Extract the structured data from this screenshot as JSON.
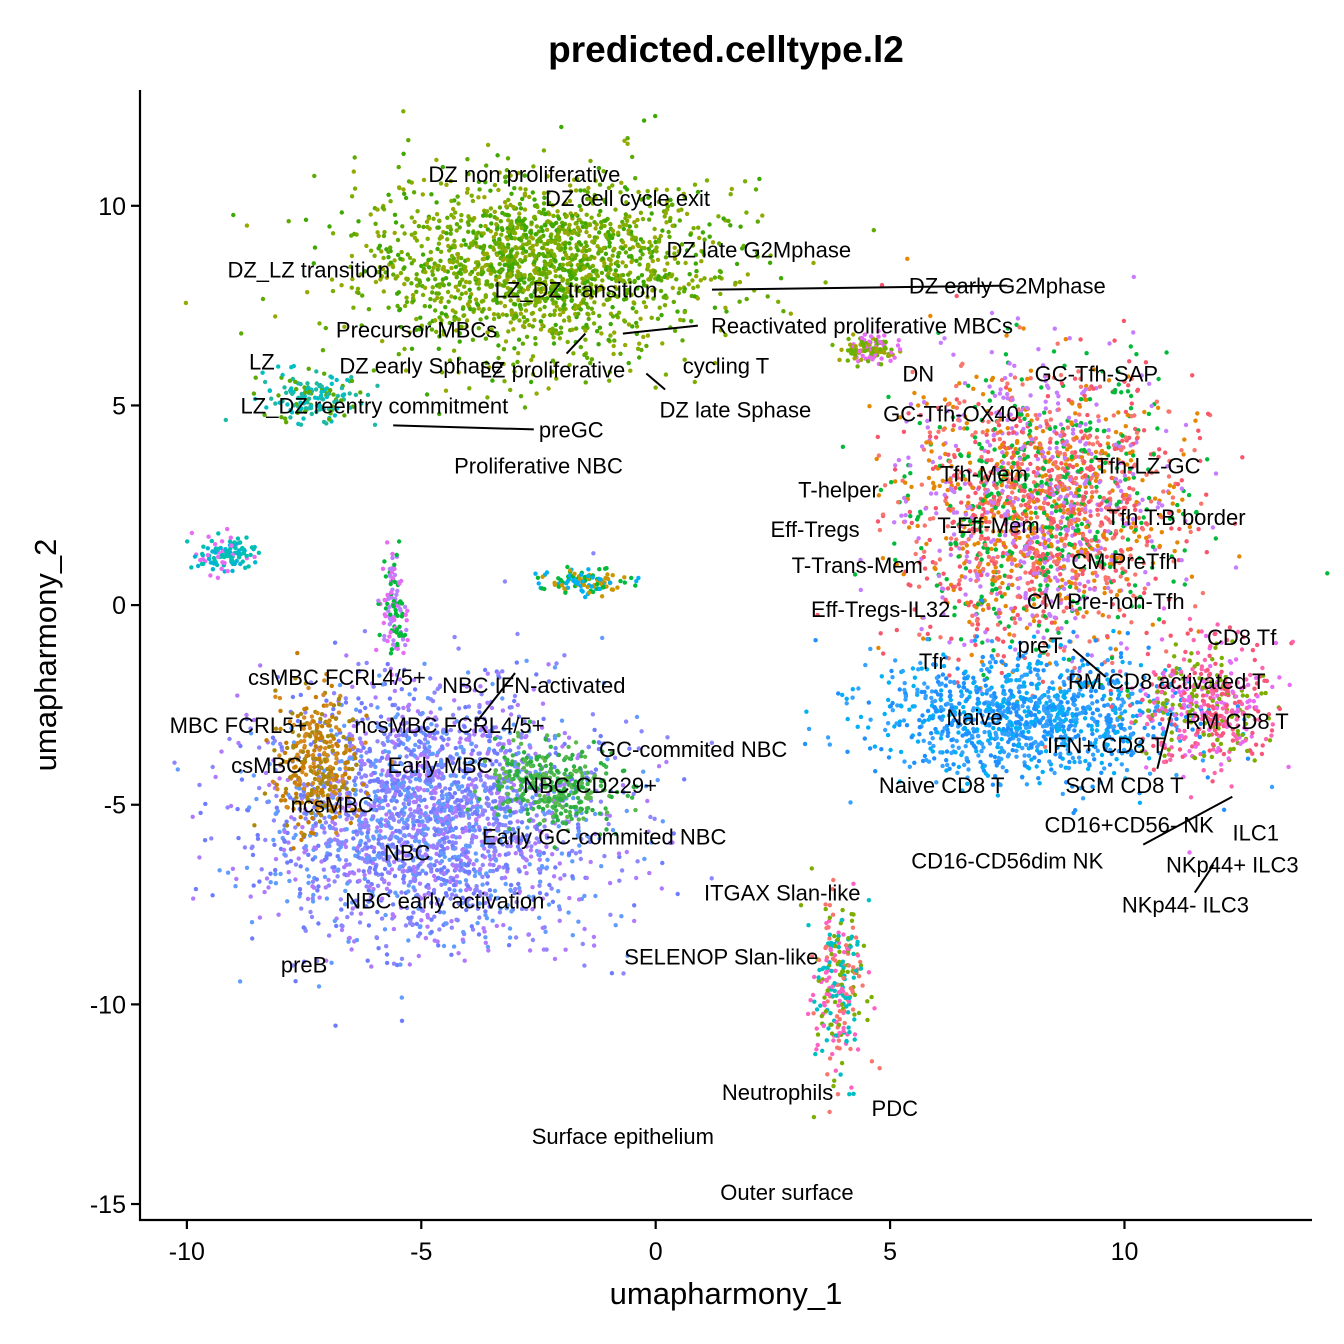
{
  "chart_data": {
    "type": "scatter",
    "title": "predicted.celltype.l2",
    "xlabel": "umapharmony_1",
    "ylabel": "umapharmony_2",
    "xlim": [
      -11.0,
      14.0
    ],
    "ylim": [
      -15.4,
      12.9
    ],
    "xticks": [
      -10,
      -5,
      0,
      5,
      10
    ],
    "yticks": [
      10,
      5,
      0,
      -5,
      -10,
      -15
    ],
    "xtick_labels": [
      "-10",
      "-5",
      "0",
      "5",
      "10"
    ],
    "ytick_labels": [
      "10",
      "5",
      "0",
      "-5",
      "-10",
      "-15"
    ],
    "legend": "none",
    "grid": false,
    "palette": [
      "#F8766D",
      "#E58700",
      "#C99800",
      "#A3A500",
      "#6BB100",
      "#00BA38",
      "#00BF7D",
      "#00C0AF",
      "#00BCD8",
      "#00B0F6",
      "#619CFF",
      "#B983FF",
      "#E76BF3",
      "#FD61D1",
      "#FF67A4"
    ],
    "clusters": [
      {
        "name": "DZ-group",
        "center": [
          -2.5,
          8.5
        ],
        "spread": [
          3.4,
          2.0
        ],
        "colors": [
          "#5DAA00",
          "#7CAE00",
          "#3CA800",
          "#95A900"
        ]
      },
      {
        "name": "GC-zone-teal",
        "center": [
          -7.3,
          5.2
        ],
        "spread": [
          1.0,
          0.6
        ],
        "colors": [
          "#1FB9A3",
          "#00BFC4",
          "#5DAA00"
        ]
      },
      {
        "name": "T-group",
        "center": [
          8.2,
          2.4
        ],
        "spread": [
          2.6,
          3.2
        ],
        "colors": [
          "#F8766D",
          "#F8566A",
          "#E58700",
          "#00BA38",
          "#C77CFF"
        ]
      },
      {
        "name": "T-lower",
        "center": [
          7.9,
          -2.8
        ],
        "spread": [
          3.0,
          1.4
        ],
        "colors": [
          "#1E90FF",
          "#35A2FF",
          "#00B0F6"
        ]
      },
      {
        "name": "CD8-group",
        "center": [
          11.8,
          -2.5
        ],
        "spread": [
          1.3,
          1.4
        ],
        "colors": [
          "#F8567A",
          "#FF64B0",
          "#E76BF3",
          "#7CAE00"
        ]
      },
      {
        "name": "B-group",
        "center": [
          -4.8,
          -5.3
        ],
        "spread": [
          3.3,
          2.8
        ],
        "colors": [
          "#6F7CFF",
          "#619CFF",
          "#8C86FF",
          "#B07AFF"
        ]
      },
      {
        "name": "B-left",
        "center": [
          -7.2,
          -4.0
        ],
        "spread": [
          0.8,
          1.6
        ],
        "colors": [
          "#C77C00",
          "#A8890D",
          "#D58A1F"
        ]
      },
      {
        "name": "B-right",
        "center": [
          -2.2,
          -4.5
        ],
        "spread": [
          1.2,
          1.0
        ],
        "colors": [
          "#3AB54A",
          "#2AAE3F",
          "#5BB84C"
        ]
      },
      {
        "name": "myeloid",
        "center": [
          3.9,
          -9.7
        ],
        "spread": [
          0.5,
          2.0
        ],
        "colors": [
          "#F8766D",
          "#00BFC4",
          "#FF61C3",
          "#7CAE00"
        ]
      },
      {
        "name": "small-1",
        "center": [
          -9.2,
          1.3
        ],
        "spread": [
          0.6,
          0.4
        ],
        "colors": [
          "#00B4D8",
          "#E76BF3",
          "#00C0AF"
        ]
      },
      {
        "name": "small-2",
        "center": [
          -1.5,
          0.6
        ],
        "spread": [
          0.8,
          0.3
        ],
        "colors": [
          "#00B0F6",
          "#C99800",
          "#00BA38"
        ]
      },
      {
        "name": "small-3",
        "center": [
          4.6,
          6.4
        ],
        "spread": [
          0.6,
          0.3
        ],
        "colors": [
          "#A3A500",
          "#6BB100",
          "#E76BF3"
        ]
      },
      {
        "name": "small-4",
        "center": [
          -5.6,
          0.0
        ],
        "spread": [
          0.3,
          1.2
        ],
        "colors": [
          "#E76BF3",
          "#00BA38",
          "#B983FF"
        ]
      }
    ],
    "labels": [
      {
        "text": "DZ non proliferative",
        "x": -2.8,
        "y": 10.8
      },
      {
        "text": "DZ cell cycle exit",
        "x": -0.6,
        "y": 10.2
      },
      {
        "text": "DZ late G2Mphase",
        "x": 2.2,
        "y": 8.9
      },
      {
        "text": "DZ early G2Mphase",
        "x": 7.5,
        "y": 8.0
      },
      {
        "text": "DZ_LZ transition",
        "x": -7.4,
        "y": 8.4
      },
      {
        "text": "LZ_DZ transition",
        "x": -1.7,
        "y": 7.9
      },
      {
        "text": "Reactivated proliferative MBCs",
        "x": 4.4,
        "y": 7.0
      },
      {
        "text": "Precursor MBCs",
        "x": -5.1,
        "y": 6.9
      },
      {
        "text": "LZ",
        "x": -8.4,
        "y": 6.1
      },
      {
        "text": "DZ early Sphase",
        "x": -5.0,
        "y": 6.0
      },
      {
        "text": "LZ proliferative",
        "x": -2.2,
        "y": 5.9
      },
      {
        "text": "cycling T",
        "x": 1.5,
        "y": 6.0
      },
      {
        "text": "DN",
        "x": 5.6,
        "y": 5.8
      },
      {
        "text": "GC-Tfh-SAP",
        "x": 9.4,
        "y": 5.8
      },
      {
        "text": "LZ_DZ reentry commitment",
        "x": -6.0,
        "y": 5.0
      },
      {
        "text": "DZ late Sphase",
        "x": 1.7,
        "y": 4.9
      },
      {
        "text": "GC-Tfh-OX40",
        "x": 6.3,
        "y": 4.8
      },
      {
        "text": "preGC",
        "x": -1.8,
        "y": 4.4
      },
      {
        "text": "Proliferative NBC",
        "x": -2.5,
        "y": 3.5
      },
      {
        "text": "Tfh-LZ-GC",
        "x": 10.5,
        "y": 3.5
      },
      {
        "text": "Tfh-Mem",
        "x": 7.0,
        "y": 3.3
      },
      {
        "text": "T-helper",
        "x": 3.9,
        "y": 2.9
      },
      {
        "text": "Tfh T:B border",
        "x": 11.1,
        "y": 2.2
      },
      {
        "text": "Eff-Tregs",
        "x": 3.4,
        "y": 1.9
      },
      {
        "text": "T-Eff-Mem",
        "x": 7.1,
        "y": 2.0
      },
      {
        "text": "T-Trans-Mem",
        "x": 4.3,
        "y": 1.0
      },
      {
        "text": "CM PreTfh",
        "x": 10.0,
        "y": 1.1
      },
      {
        "text": "Eff-Tregs-IL32",
        "x": 4.8,
        "y": -0.1
      },
      {
        "text": "CM Pre-non-Tfh",
        "x": 9.6,
        "y": 0.1
      },
      {
        "text": "CD8 Tf",
        "x": 12.5,
        "y": -0.8
      },
      {
        "text": "preT",
        "x": 8.2,
        "y": -1.0
      },
      {
        "text": "Tfr",
        "x": 5.9,
        "y": -1.4
      },
      {
        "text": "RM CD8 activated T",
        "x": 10.9,
        "y": -1.9
      },
      {
        "text": "csMBC FCRL4/5+",
        "x": -6.8,
        "y": -1.8
      },
      {
        "text": "NBC IFN-activated",
        "x": -2.6,
        "y": -2.0
      },
      {
        "text": "Naive",
        "x": 6.8,
        "y": -2.8
      },
      {
        "text": "RM CD8 T",
        "x": 12.4,
        "y": -2.9
      },
      {
        "text": "MBC FCRL5+",
        "x": -8.9,
        "y": -3.0
      },
      {
        "text": "ncsMBC FCRL4/5+",
        "x": -4.4,
        "y": -3.0
      },
      {
        "text": "IFN+ CD8 T",
        "x": 9.6,
        "y": -3.5
      },
      {
        "text": "GC-commited NBC",
        "x": 0.8,
        "y": -3.6
      },
      {
        "text": "csMBC",
        "x": -8.3,
        "y": -4.0
      },
      {
        "text": "Early MBC",
        "x": -4.6,
        "y": -4.0
      },
      {
        "text": "Naive CD8 T",
        "x": 6.1,
        "y": -4.5
      },
      {
        "text": "SCM CD8 T",
        "x": 10.0,
        "y": -4.5
      },
      {
        "text": "NBC CD229+",
        "x": -1.4,
        "y": -4.5
      },
      {
        "text": "ncsMBC",
        "x": -6.9,
        "y": -5.0
      },
      {
        "text": "CD16+CD56- NK",
        "x": 10.1,
        "y": -5.5
      },
      {
        "text": "ILC1",
        "x": 12.8,
        "y": -5.7
      },
      {
        "text": "Early GC-commited NBC",
        "x": -1.1,
        "y": -5.8
      },
      {
        "text": "NBC",
        "x": -5.3,
        "y": -6.2
      },
      {
        "text": "CD16-CD56dim NK",
        "x": 7.5,
        "y": -6.4
      },
      {
        "text": "NKp44+ ILC3",
        "x": 12.3,
        "y": -6.5
      },
      {
        "text": "ITGAX Slan-like",
        "x": 2.7,
        "y": -7.2
      },
      {
        "text": "NBC early activation",
        "x": -4.5,
        "y": -7.4
      },
      {
        "text": "NKp44- ILC3",
        "x": 11.3,
        "y": -7.5
      },
      {
        "text": "preB",
        "x": -7.5,
        "y": -9.0
      },
      {
        "text": "SELENOP Slan-like",
        "x": 1.4,
        "y": -8.8
      },
      {
        "text": "Neutrophils",
        "x": 2.6,
        "y": -12.2
      },
      {
        "text": "PDC",
        "x": 5.1,
        "y": -12.6
      },
      {
        "text": "Surface epithelium",
        "x": -0.7,
        "y": -13.3
      },
      {
        "text": "Outer surface",
        "x": 2.8,
        "y": -14.7
      }
    ],
    "leader_lines": [
      {
        "from": [
          7.5,
          8.0
        ],
        "to": [
          1.2,
          7.9
        ]
      },
      {
        "from": [
          0.9,
          7.0
        ],
        "to": [
          -0.7,
          6.8
        ]
      },
      {
        "from": [
          -1.9,
          6.3
        ],
        "to": [
          -1.5,
          6.8
        ]
      },
      {
        "from": [
          0.2,
          5.4
        ],
        "to": [
          -0.2,
          5.8
        ]
      },
      {
        "from": [
          -2.6,
          4.4
        ],
        "to": [
          -5.6,
          4.5
        ]
      },
      {
        "from": [
          -3.0,
          -1.7
        ],
        "to": [
          -3.8,
          -2.9
        ]
      },
      {
        "from": [
          8.9,
          -1.1
        ],
        "to": [
          9.6,
          -1.8
        ]
      },
      {
        "from": [
          10.7,
          -4.1
        ],
        "to": [
          11.0,
          -2.7
        ]
      },
      {
        "from": [
          10.4,
          -6.0
        ],
        "to": [
          12.3,
          -4.8
        ]
      },
      {
        "from": [
          11.5,
          -7.2
        ],
        "to": [
          11.9,
          -6.5
        ]
      }
    ]
  }
}
